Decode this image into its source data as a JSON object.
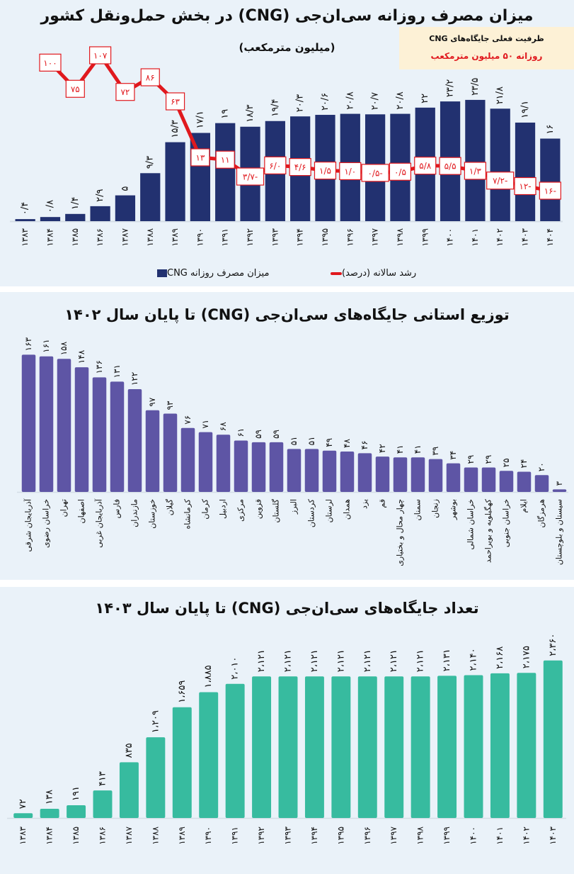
{
  "chart_data": [
    {
      "type": "bar",
      "title": "میزان مصرف روزانه سی‌ان‌جی (CNG) در بخش حمل‌ونقل کشور",
      "subtitle": "(میلیون مترمکعب)",
      "xlabel": "",
      "ylabel": "",
      "grid": false,
      "legend_position": "bottom",
      "categories": [
        "۱۳۸۳",
        "۱۳۸۴",
        "۱۳۸۵",
        "۱۳۸۶",
        "۱۳۸۷",
        "۱۳۸۸",
        "۱۳۸۹",
        "۱۳۹۰",
        "۱۳۹۱",
        "۱۳۹۲",
        "۱۳۹۳",
        "۱۳۹۴",
        "۱۳۹۵",
        "۱۳۹۶",
        "۱۳۹۷",
        "۱۳۹۸",
        "۱۳۹۹",
        "۱۴۰۰",
        "۱۴۰۱",
        "۱۴۰۲",
        "۱۴۰۳",
        "۱۴۰۴"
      ],
      "series": [
        {
          "name": "میزان مصرف روزانه CNG",
          "type": "bar",
          "color": "#223170",
          "values": [
            0.4,
            0.8,
            1.4,
            2.9,
            5,
            9.3,
            15.3,
            17.1,
            19,
            18.3,
            19.4,
            20.3,
            20.6,
            20.8,
            20.7,
            20.8,
            22,
            23.2,
            23.5,
            21.8,
            19.1,
            16
          ],
          "labels": [
            "۰/۴",
            "۰/۸",
            "۱/۴",
            "۲/۹",
            "۵",
            "۹/۳",
            "۱۵/۳",
            "۱۷/۱",
            "۱۹",
            "۱۸/۳",
            "۱۹/۴",
            "۲۰/۳",
            "۲۰/۶",
            "۲۰/۸",
            "۲۰/۷",
            "۲۰/۸",
            "۲۲",
            "۲۳/۲",
            "۲۳/۵",
            "۲۱/۸",
            "۱۹/۱",
            "۱۶"
          ]
        },
        {
          "name": "رشد سالانه (درصد)",
          "type": "line",
          "color": "#e0191e",
          "start_index": 1,
          "values": [
            100,
            75,
            107,
            72,
            86,
            63,
            13,
            11,
            -3.7,
            6.0,
            4.6,
            1.5,
            1.0,
            -0.5,
            0.5,
            5.8,
            5.5,
            1.3,
            -7.2,
            -12,
            -16
          ],
          "labels": [
            "۱۰۰",
            "۷۵",
            "۱۰۷",
            "۷۲",
            "۸۶",
            "۶۳",
            "۱۳",
            "۱۱",
            "-۳/۷",
            "۶/۰",
            "۴/۶",
            "۱/۵",
            "۱/۰",
            "-۰/۵",
            "۰/۵",
            "۵/۸",
            "۵/۵",
            "۱/۳",
            "-۷/۲",
            "-۱۲",
            "-۱۶"
          ]
        }
      ],
      "ylim": [
        0,
        25
      ],
      "note": {
        "line1": "ظرفیت فعلی جایگاه‌های CNG",
        "line2": "روزانه ۵۰ میلیون مترمکعب",
        "line2_color": "#e0191e",
        "background": "#fdf1d6"
      }
    },
    {
      "type": "bar",
      "title": "توزیع استانی جایگاه‌های سی‌ان‌جی (CNG) تا پایان سال ۱۴۰۲",
      "xlabel": "",
      "ylabel": "",
      "grid": false,
      "color": "#5e55a5",
      "categories": [
        "آذربایجان شرقی",
        "خراسان رضوی",
        "تهران",
        "اصفهان",
        "آذربایجان غربی",
        "فارس",
        "مازندران",
        "خوزستان",
        "گیلان",
        "کرمانشاه",
        "کرمان",
        "اردبیل",
        "مرکزی",
        "قزوین",
        "گلستان",
        "البرز",
        "کردستان",
        "لرستان",
        "همدان",
        "یزد",
        "قم",
        "چهار محال و بختیاری",
        "سمنان",
        "زنجان",
        "بوشهر",
        "خراسان شمالی",
        "کهگیلویه و بویراحمد",
        "خراسان جنوبی",
        "ایلام",
        "هرمزگان",
        "سیستان و بلوچستان"
      ],
      "values": [
        163,
        161,
        158,
        148,
        136,
        131,
        122,
        97,
        93,
        76,
        71,
        68,
        61,
        59,
        59,
        51,
        51,
        49,
        48,
        46,
        42,
        41,
        41,
        39,
        34,
        29,
        29,
        25,
        24,
        20,
        3
      ],
      "labels": [
        "۱۶۳",
        "۱۶۱",
        "۱۵۸",
        "۱۴۸",
        "۱۳۶",
        "۱۳۱",
        "۱۲۲",
        "۹۷",
        "۹۳",
        "۷۶",
        "۷۱",
        "۶۸",
        "۶۱",
        "۵۹",
        "۵۹",
        "۵۱",
        "۵۱",
        "۴۹",
        "۴۸",
        "۴۶",
        "۴۲",
        "۴۱",
        "۴۱",
        "۳۹",
        "۳۴",
        "۲۹",
        "۲۹",
        "۲۵",
        "۲۴",
        "۲۰",
        "۳"
      ],
      "ylim": [
        0,
        170
      ]
    },
    {
      "type": "bar",
      "title": "تعداد جایگاه‌های سی‌ان‌جی (CNG) تا پایان سال ۱۴۰۳",
      "xlabel": "",
      "ylabel": "",
      "grid": false,
      "color": "#37bb9f",
      "categories": [
        "۱۳۸۳",
        "۱۳۸۴",
        "۱۳۸۵",
        "۱۳۸۶",
        "۱۳۸۷",
        "۱۳۸۸",
        "۱۳۸۹",
        "۱۳۹۰",
        "۱۳۹۱",
        "۱۳۹۲",
        "۱۳۹۳",
        "۱۳۹۴",
        "۱۳۹۵",
        "۱۳۹۶",
        "۱۳۹۷",
        "۱۳۹۸",
        "۱۳۹۹",
        "۱۴۰۰",
        "۱۴۰۱",
        "۱۴۰۲",
        "۱۴۰۳"
      ],
      "values": [
        72,
        138,
        191,
        413,
        835,
        1209,
        1659,
        1885,
        2010,
        2121,
        2121,
        2121,
        2121,
        2121,
        2121,
        2121,
        2131,
        2140,
        2168,
        2175,
        2360
      ],
      "labels": [
        "۷۲",
        "۱۳۸",
        "۱۹۱",
        "۴۱۳",
        "۸۳۵",
        "۱،۲۰۹",
        "۱،۶۵۹",
        "۱،۸۸۵",
        "۲،۰۱۰",
        "۲،۱۲۱",
        "۲،۱۲۱",
        "۲،۱۲۱",
        "۲،۱۲۱",
        "۲،۱۲۱",
        "۲،۱۲۱",
        "۲،۱۲۱",
        "۲،۱۳۱",
        "۲،۱۴۰",
        "۲،۱۶۸",
        "۲،۱۷۵",
        "۲،۳۶۰"
      ],
      "ylim": [
        0,
        2400
      ]
    }
  ]
}
